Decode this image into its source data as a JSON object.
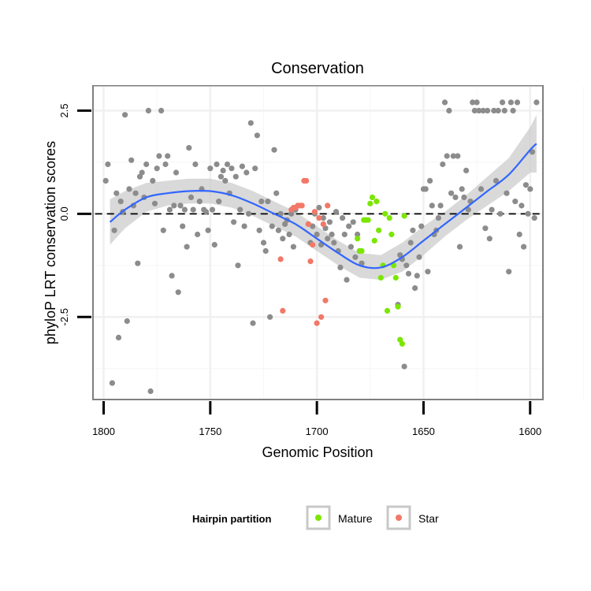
{
  "chart_data": {
    "type": "scatter",
    "title": "Conservation",
    "xlabel": "Genomic Position",
    "ylabel": "phyloP LRT conservation scores",
    "xlim": [
      1805,
      1594
    ],
    "x_reversed": true,
    "ylim": [
      -4.5,
      3.1
    ],
    "x_ticks": [
      1800,
      1750,
      1700,
      1650,
      1600
    ],
    "x_tick_labels": [
      "1800",
      "1750",
      "1700",
      "1650",
      "1600"
    ],
    "y_ticks": [
      2.5,
      0.0,
      -2.5
    ],
    "y_tick_labels": [
      "2.5",
      "0.0",
      "-2.5"
    ],
    "reference_line": {
      "y": 0,
      "style": "dashed"
    },
    "legend": {
      "title": "Hairpin partition",
      "position": "bottom",
      "entries": [
        {
          "name": "Mature",
          "color": "#7be600"
        },
        {
          "name": "Star",
          "color": "#f27868"
        }
      ]
    },
    "colors": {
      "Other": "#8c8c8c",
      "Mature": "#7be600",
      "Star": "#f27868",
      "smooth": "#3366ff",
      "band": "#cccccc"
    },
    "series": [
      {
        "name": "Other",
        "points": [
          [
            1799,
            0.8
          ],
          [
            1798,
            1.2
          ],
          [
            1796,
            -4.1
          ],
          [
            1795,
            -0.4
          ],
          [
            1794,
            0.5
          ],
          [
            1793,
            -3.0
          ],
          [
            1792,
            0.3
          ],
          [
            1791,
            0.05
          ],
          [
            1790,
            2.4
          ],
          [
            1789,
            -2.6
          ],
          [
            1788,
            0.6
          ],
          [
            1787,
            1.3
          ],
          [
            1786,
            0.2
          ],
          [
            1785,
            0.5
          ],
          [
            1784,
            -1.2
          ],
          [
            1783,
            0.9
          ],
          [
            1782,
            1.0
          ],
          [
            1781,
            0.4
          ],
          [
            1780,
            1.2
          ],
          [
            1779,
            2.5
          ],
          [
            1778,
            -4.3
          ],
          [
            1777,
            0.8
          ],
          [
            1776,
            0.25
          ],
          [
            1775,
            1.1
          ],
          [
            1774,
            1.4
          ],
          [
            1773,
            2.5
          ],
          [
            1772,
            -0.4
          ],
          [
            1771,
            1.2
          ],
          [
            1770,
            1.4
          ],
          [
            1769,
            0.1
          ],
          [
            1768,
            -1.5
          ],
          [
            1767,
            0.2
          ],
          [
            1766,
            1.0
          ],
          [
            1765,
            -1.9
          ],
          [
            1764,
            0.2
          ],
          [
            1763,
            -0.3
          ],
          [
            1762,
            0.1
          ],
          [
            1761,
            -0.8
          ],
          [
            1760,
            1.6
          ],
          [
            1759,
            0.4
          ],
          [
            1758,
            0.1
          ],
          [
            1757,
            1.2
          ],
          [
            1756,
            -0.5
          ],
          [
            1755,
            0.3
          ],
          [
            1754,
            0.6
          ],
          [
            1753,
            0.1
          ],
          [
            1752,
            0.05
          ],
          [
            1751,
            -0.4
          ],
          [
            1750,
            1.1
          ],
          [
            1749,
            0.1
          ],
          [
            1748,
            -0.75
          ],
          [
            1747,
            1.2
          ],
          [
            1746,
            0.3
          ],
          [
            1745,
            0.9
          ],
          [
            1744,
            1.05
          ],
          [
            1743,
            0.8
          ],
          [
            1742,
            1.2
          ],
          [
            1741,
            0.5
          ],
          [
            1740,
            1.1
          ],
          [
            1739,
            -0.2
          ],
          [
            1738,
            0.9
          ],
          [
            1737,
            -1.25
          ],
          [
            1736,
            0.1
          ],
          [
            1735,
            1.15
          ],
          [
            1734,
            -0.3
          ],
          [
            1733,
            1.0
          ],
          [
            1732,
            0.0
          ],
          [
            1731,
            2.2
          ],
          [
            1730,
            -2.65
          ],
          [
            1729,
            1.1
          ],
          [
            1728,
            1.9
          ],
          [
            1727,
            -0.4
          ],
          [
            1726,
            0.3
          ],
          [
            1725,
            -0.7
          ],
          [
            1724,
            -0.9
          ],
          [
            1723,
            0.3
          ],
          [
            1722,
            -2.5
          ],
          [
            1721,
            -0.3
          ],
          [
            1720,
            1.55
          ],
          [
            1719,
            0.5
          ],
          [
            1718,
            -0.4
          ],
          [
            1717,
            0.0
          ],
          [
            1716,
            -0.6
          ],
          [
            1715,
            -0.25
          ],
          [
            1714,
            -0.15
          ],
          [
            1713,
            -0.5
          ],
          [
            1712,
            0.0
          ],
          [
            1711,
            -0.8
          ],
          [
            1710,
            0.1
          ],
          [
            1703,
            -0.7
          ],
          [
            1702,
            -0.3
          ],
          [
            1701,
            0.0
          ],
          [
            1700,
            -0.5
          ],
          [
            1699,
            0.15
          ],
          [
            1698,
            -0.75
          ],
          [
            1697,
            -0.1
          ],
          [
            1696,
            -0.35
          ],
          [
            1695,
            -0.6
          ],
          [
            1694,
            -0.2
          ],
          [
            1693,
            -0.5
          ],
          [
            1692,
            -0.7
          ],
          [
            1691,
            0.05
          ],
          [
            1690,
            -0.9
          ],
          [
            1689,
            -1.3
          ],
          [
            1688,
            -0.1
          ],
          [
            1687,
            -0.5
          ],
          [
            1686,
            -1.6
          ],
          [
            1685,
            -0.3
          ],
          [
            1684,
            -0.8
          ],
          [
            1683,
            -0.2
          ],
          [
            1682,
            -1.05
          ],
          [
            1681,
            -0.5
          ],
          [
            1680,
            -0.9
          ],
          [
            1679,
            -1.2
          ],
          [
            1662,
            -2.2
          ],
          [
            1661,
            -1.0
          ],
          [
            1660,
            -1.1
          ],
          [
            1659,
            -3.7
          ],
          [
            1658,
            -1.25
          ],
          [
            1657,
            -1.45
          ],
          [
            1656,
            -0.7
          ],
          [
            1655,
            -0.4
          ],
          [
            1654,
            -1.8
          ],
          [
            1653,
            -1.5
          ],
          [
            1652,
            -1.05
          ],
          [
            1651,
            -0.3
          ],
          [
            1650,
            0.6
          ],
          [
            1649,
            0.6
          ],
          [
            1648,
            -1.4
          ],
          [
            1647,
            0.8
          ],
          [
            1646,
            0.2
          ],
          [
            1645,
            -0.5
          ],
          [
            1644,
            -0.4
          ],
          [
            1643,
            -0.1
          ],
          [
            1642,
            0.2
          ],
          [
            1641,
            1.2
          ],
          [
            1640,
            2.7
          ],
          [
            1639,
            1.4
          ],
          [
            1638,
            2.5
          ],
          [
            1637,
            0.5
          ],
          [
            1636,
            1.4
          ],
          [
            1635,
            0.4
          ],
          [
            1634,
            1.4
          ],
          [
            1633,
            -0.8
          ],
          [
            1632,
            0.6
          ],
          [
            1631,
            0.4
          ],
          [
            1630,
            1.05
          ],
          [
            1629,
            0.1
          ],
          [
            1628,
            0.3
          ],
          [
            1627,
            2.7
          ],
          [
            1626,
            2.5
          ],
          [
            1625,
            2.7
          ],
          [
            1624,
            2.5
          ],
          [
            1623,
            0.6
          ],
          [
            1622,
            2.5
          ],
          [
            1621,
            -0.35
          ],
          [
            1620,
            2.5
          ],
          [
            1619,
            -0.6
          ],
          [
            1618,
            0.1
          ],
          [
            1617,
            2.5
          ],
          [
            1616,
            0.8
          ],
          [
            1615,
            2.5
          ],
          [
            1614,
            0.0
          ],
          [
            1613,
            2.7
          ],
          [
            1612,
            2.5
          ],
          [
            1611,
            0.5
          ],
          [
            1610,
            -1.4
          ],
          [
            1609,
            2.7
          ],
          [
            1608,
            2.5
          ],
          [
            1607,
            0.3
          ],
          [
            1606,
            2.7
          ],
          [
            1605,
            -0.5
          ],
          [
            1604,
            0.2
          ],
          [
            1603,
            -0.8
          ],
          [
            1602,
            0.7
          ],
          [
            1601,
            0.0
          ],
          [
            1600,
            0.6
          ],
          [
            1599,
            1.5
          ],
          [
            1598,
            -0.1
          ],
          [
            1597,
            2.7
          ]
        ]
      },
      {
        "name": "Star",
        "points": [
          [
            1717,
            -1.1
          ],
          [
            1716,
            -2.35
          ],
          [
            1712,
            0.1
          ],
          [
            1711,
            0.15
          ],
          [
            1710,
            0.15
          ],
          [
            1709,
            0.2
          ],
          [
            1708,
            0.2
          ],
          [
            1707,
            0.2
          ],
          [
            1706,
            0.8
          ],
          [
            1705,
            0.8
          ],
          [
            1704,
            -0.25
          ],
          [
            1703,
            -1.15
          ],
          [
            1702,
            -0.75
          ],
          [
            1701,
            0.05
          ],
          [
            1700,
            -2.65
          ],
          [
            1699,
            -0.1
          ],
          [
            1698,
            -2.5
          ],
          [
            1697,
            -0.25
          ],
          [
            1696,
            -2.1
          ],
          [
            1695,
            0.2
          ]
        ]
      },
      {
        "name": "Mature",
        "points": [
          [
            1681,
            -0.6
          ],
          [
            1680,
            -0.9
          ],
          [
            1679,
            -0.9
          ],
          [
            1678,
            -0.15
          ],
          [
            1677,
            -0.15
          ],
          [
            1676,
            -0.15
          ],
          [
            1675,
            0.25
          ],
          [
            1674,
            0.4
          ],
          [
            1673,
            -0.65
          ],
          [
            1672,
            0.3
          ],
          [
            1671,
            -0.4
          ],
          [
            1670,
            -1.55
          ],
          [
            1669,
            -1.25
          ],
          [
            1668,
            0.0
          ],
          [
            1667,
            -2.35
          ],
          [
            1666,
            -0.1
          ],
          [
            1665,
            -0.5
          ],
          [
            1664,
            -1.25
          ],
          [
            1663,
            -1.55
          ],
          [
            1662,
            -2.25
          ],
          [
            1661,
            -3.05
          ],
          [
            1660,
            -3.15
          ],
          [
            1659,
            -0.05
          ]
        ]
      }
    ],
    "smooth": {
      "method": "loess",
      "x": [
        1797,
        1790,
        1780,
        1770,
        1760,
        1750,
        1740,
        1730,
        1720,
        1710,
        1700,
        1690,
        1680,
        1670,
        1660,
        1650,
        1640,
        1630,
        1620,
        1610,
        1600,
        1597
      ],
      "y": [
        -0.2,
        0.1,
        0.4,
        0.5,
        0.55,
        0.55,
        0.45,
        0.25,
        0.0,
        -0.25,
        -0.6,
        -0.95,
        -1.25,
        -1.3,
        -1.05,
        -0.65,
        -0.25,
        0.15,
        0.55,
        0.95,
        1.55,
        1.7
      ],
      "lower": [
        -0.75,
        -0.35,
        0.05,
        0.2,
        0.25,
        0.25,
        0.15,
        -0.05,
        -0.3,
        -0.55,
        -0.9,
        -1.25,
        -1.55,
        -1.6,
        -1.4,
        -1.0,
        -0.55,
        -0.15,
        0.2,
        0.55,
        1.0,
        1.0
      ],
      "upper": [
        0.35,
        0.55,
        0.75,
        0.8,
        0.85,
        0.85,
        0.75,
        0.55,
        0.3,
        0.05,
        -0.3,
        -0.65,
        -0.95,
        -1.0,
        -0.7,
        -0.3,
        0.05,
        0.45,
        0.9,
        1.35,
        2.1,
        2.4
      ]
    }
  }
}
